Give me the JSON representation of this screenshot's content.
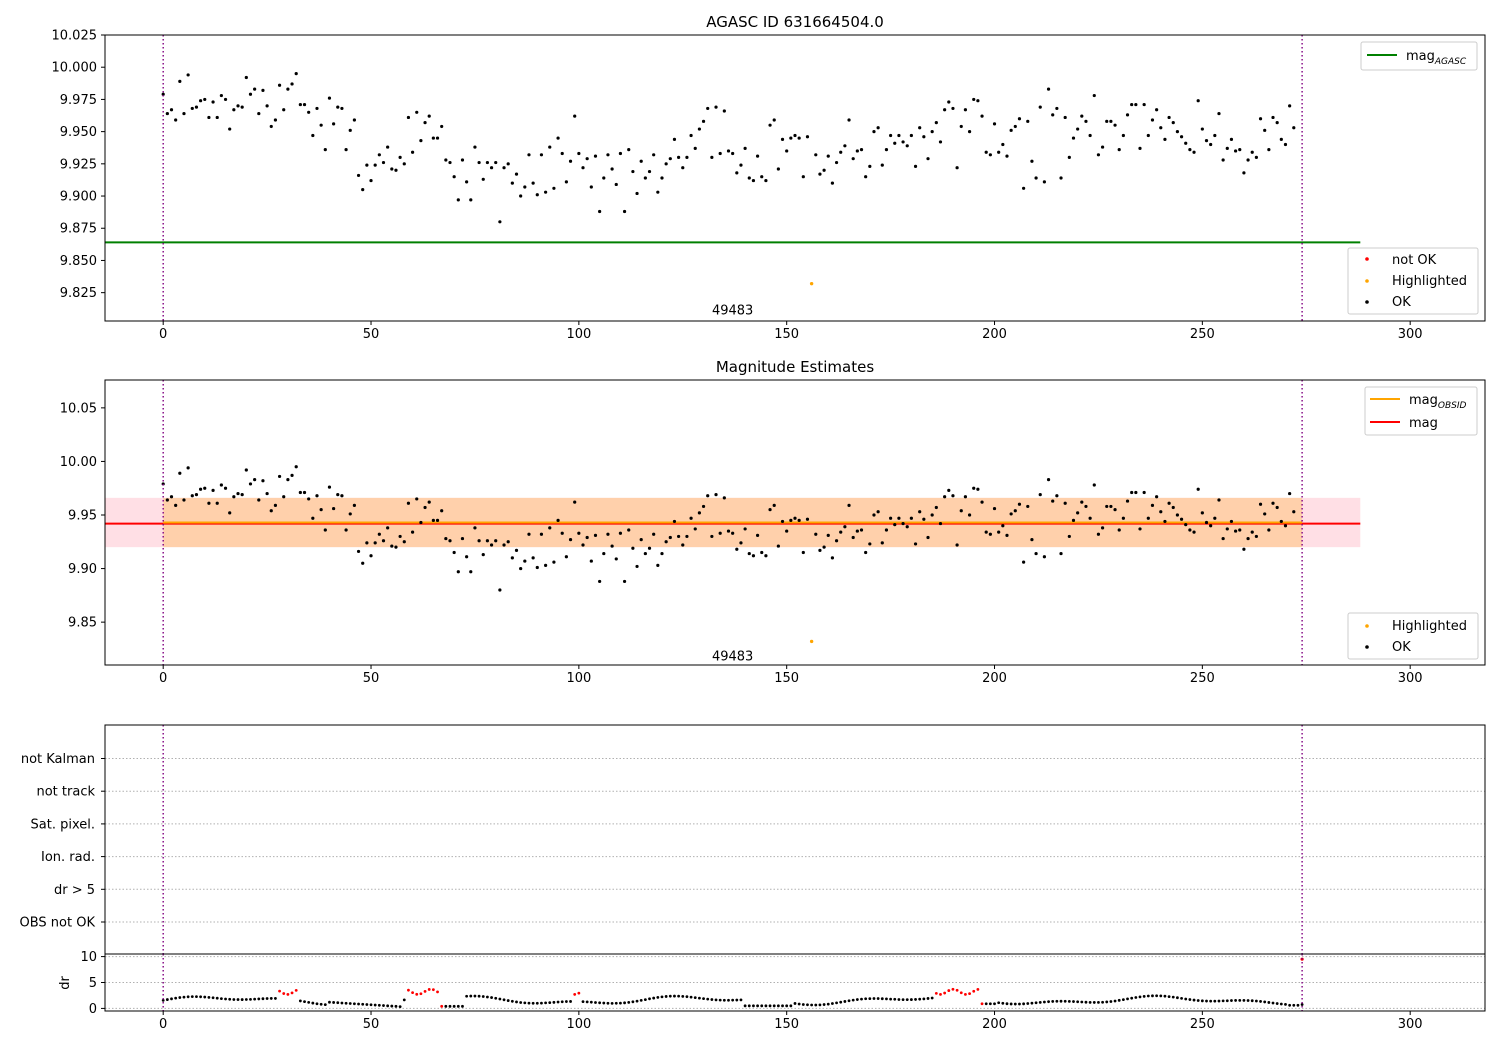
{
  "chart_data": [
    {
      "type": "scatter",
      "title": "AGASC ID 631664504.0",
      "xlabel": "",
      "ylabel": "",
      "xlim": [
        -14,
        318
      ],
      "ylim": [
        9.803,
        10.025
      ],
      "xticks": [
        0,
        50,
        100,
        150,
        200,
        250,
        300
      ],
      "yticks": [
        9.825,
        9.85,
        9.875,
        9.9,
        9.925,
        9.95,
        9.975,
        10.0,
        10.025
      ],
      "ytick_labels": [
        "9.825",
        "9.850",
        "9.875",
        "9.900",
        "9.925",
        "9.950",
        "9.975",
        "10.000",
        "10.025"
      ],
      "grid": false,
      "legends": [
        {
          "placement": "top-right",
          "entries": [
            {
              "label": "mag",
              "sub": "AGASC",
              "color": "#008000",
              "marker": "line"
            }
          ]
        },
        {
          "placement": "bottom-right",
          "entries": [
            {
              "label": "not OK",
              "color": "#ff0000",
              "marker": "dot"
            },
            {
              "label": "Highlighted",
              "color": "#ffa500",
              "marker": "dot"
            },
            {
              "label": "OK",
              "color": "#000000",
              "marker": "dot"
            }
          ]
        }
      ],
      "lines": [
        {
          "name": "mag AGASC",
          "y": 9.864,
          "x_range": [
            -14,
            288
          ],
          "color": "#008000"
        }
      ],
      "highlighted_points": [
        {
          "x": 156,
          "y": 9.832
        }
      ],
      "annotations": [
        {
          "text": "49483",
          "x": 137,
          "y": 9.811
        }
      ],
      "vlines": [
        {
          "x": 0,
          "color": "#800080",
          "style": "dotted"
        },
        {
          "x": 274,
          "color": "#800080",
          "style": "dotted"
        }
      ]
    },
    {
      "type": "scatter",
      "title": "Magnitude Estimates",
      "xlabel": "",
      "ylabel": "",
      "xlim": [
        -14,
        318
      ],
      "ylim": [
        9.81,
        10.076
      ],
      "xticks": [
        0,
        50,
        100,
        150,
        200,
        250,
        300
      ],
      "yticks": [
        9.85,
        9.9,
        9.95,
        10.0,
        10.05
      ],
      "ytick_labels": [
        "9.85",
        "9.90",
        "9.95",
        "10.00",
        "10.05"
      ],
      "grid": false,
      "legends": [
        {
          "placement": "top-right",
          "entries": [
            {
              "label": "mag",
              "sub": "OBSID",
              "color": "#ffa500",
              "marker": "line"
            },
            {
              "label": "mag",
              "sub": "",
              "color": "#ff0000",
              "marker": "line"
            }
          ]
        },
        {
          "placement": "bottom-right",
          "entries": [
            {
              "label": "Highlighted",
              "color": "#ffa500",
              "marker": "dot"
            },
            {
              "label": "OK",
              "color": "#000000",
              "marker": "dot"
            }
          ]
        }
      ],
      "lines": [
        {
          "name": "mag OBSID",
          "y": 9.943,
          "x_range": [
            0,
            274
          ],
          "color": "#ffa500"
        },
        {
          "name": "mag",
          "y": 9.942,
          "x_range": [
            -14,
            288
          ],
          "color": "#ff0000"
        }
      ],
      "bands": [
        {
          "y_range": [
            9.92,
            9.966
          ],
          "x_range": [
            -14,
            288
          ],
          "color": "#ffc0cb"
        },
        {
          "y_range": [
            9.92,
            9.966
          ],
          "x_range": [
            0,
            274
          ],
          "color": "#ffa500"
        }
      ],
      "highlighted_points": [
        {
          "x": 156,
          "y": 9.832
        }
      ],
      "annotations": [
        {
          "text": "49483",
          "x": 137,
          "y": 9.818
        }
      ],
      "vlines": [
        {
          "x": 0,
          "color": "#800080",
          "style": "dotted"
        },
        {
          "x": 274,
          "color": "#800080",
          "style": "dotted"
        }
      ]
    },
    {
      "type": "scatter",
      "title": "",
      "xlabel": "",
      "ylabel": "",
      "xlim": [
        -14,
        318
      ],
      "category_ticks": [
        "not Kalman",
        "not track",
        "Sat. pixel.",
        "Ion. rad.",
        "dr > 5",
        "OBS not OK"
      ],
      "grid": true,
      "flags": "no flagged points visible",
      "vlines": [
        {
          "x": 0,
          "color": "#800080",
          "style": "dotted"
        },
        {
          "x": 274,
          "color": "#800080",
          "style": "dotted"
        }
      ]
    },
    {
      "type": "scatter",
      "title": "",
      "xlabel": "",
      "ylabel": "dr",
      "xlim": [
        -14,
        318
      ],
      "ylim": [
        -0.5,
        10.5
      ],
      "xticks": [
        0,
        50,
        100,
        150,
        200,
        250,
        300
      ],
      "yticks": [
        0,
        5,
        10
      ],
      "ytick_labels": [
        "0",
        "5",
        "10"
      ],
      "grid": true,
      "red_ranges": [
        [
          28,
          32
        ],
        [
          59,
          67
        ],
        [
          99,
          100
        ],
        [
          186,
          197
        ]
      ],
      "extra_points": [
        {
          "x": 274,
          "y": 9.5,
          "color": "#ff0000"
        }
      ],
      "vlines": [
        {
          "x": 0,
          "color": "#800080",
          "style": "dotted"
        },
        {
          "x": 274,
          "color": "#800080",
          "style": "dotted"
        }
      ]
    }
  ],
  "series": {
    "x_start": 0,
    "highlighted_x": 156,
    "mag_ok": [
      9.979,
      9.964,
      9.967,
      9.959,
      9.989,
      9.964,
      9.994,
      9.968,
      9.969,
      9.974,
      9.975,
      9.961,
      9.973,
      9.961,
      9.978,
      9.975,
      9.952,
      9.967,
      9.97,
      9.969,
      9.992,
      9.979,
      9.983,
      9.964,
      9.982,
      9.97,
      9.954,
      9.959,
      9.986,
      9.967,
      9.983,
      9.987,
      9.995,
      9.971,
      9.971,
      9.965,
      9.947,
      9.968,
      9.955,
      9.936,
      9.976,
      9.956,
      9.969,
      9.968,
      9.936,
      9.951,
      9.959,
      9.916,
      9.905,
      9.924,
      9.912,
      9.924,
      9.932,
      9.926,
      9.938,
      9.921,
      9.92,
      9.93,
      9.925,
      9.961,
      9.934,
      9.965,
      9.943,
      9.957,
      9.962,
      9.945,
      9.945,
      9.954,
      9.928,
      9.926,
      9.915,
      9.897,
      9.928,
      9.911,
      9.897,
      9.938,
      9.926,
      9.913,
      9.926,
      9.922,
      9.926,
      9.88,
      9.922,
      9.925,
      9.91,
      9.917,
      9.9,
      9.907,
      9.932,
      9.91,
      9.901,
      9.932,
      9.903,
      9.938,
      9.906,
      9.945,
      9.933,
      9.911,
      9.927,
      9.962,
      9.933,
      9.922,
      9.929,
      9.907,
      9.931,
      9.888,
      9.914,
      9.932,
      9.921,
      9.909,
      9.933,
      9.888,
      9.936,
      9.919,
      9.902,
      9.927,
      9.914,
      9.919,
      9.932,
      9.903,
      9.914,
      9.925,
      9.929,
      9.944,
      9.93,
      9.922,
      9.93,
      9.947,
      9.937,
      9.952,
      9.958,
      9.968,
      9.93,
      9.969,
      9.933,
      9.966,
      9.935,
      9.933,
      9.918,
      9.924,
      9.937,
      9.914,
      9.912,
      9.931,
      9.915,
      9.912,
      9.955,
      9.959,
      9.921,
      9.944,
      9.935,
      9.945,
      9.947,
      9.945,
      9.915,
      9.946,
      9.914,
      9.932,
      9.917,
      9.92,
      9.931,
      9.91,
      9.926,
      9.934,
      9.939,
      9.959,
      9.929,
      9.935,
      9.936,
      9.915,
      9.923,
      9.95,
      9.953,
      9.924,
      9.936,
      9.947,
      9.941,
      9.947,
      9.942,
      9.939,
      9.947,
      9.923,
      9.953,
      9.946,
      9.929,
      9.95,
      9.957,
      9.942,
      9.967,
      9.973,
      9.968,
      9.922,
      9.954,
      9.967,
      9.95,
      9.975,
      9.974,
      9.962,
      9.934,
      9.932,
      9.956,
      9.934,
      9.94,
      9.931,
      9.951,
      9.954,
      9.96,
      9.906,
      9.958,
      9.927,
      9.914,
      9.969,
      9.911,
      9.983,
      9.963,
      9.968,
      9.914,
      9.961,
      9.93,
      9.945,
      9.952,
      9.962,
      9.958,
      9.947,
      9.978,
      9.932,
      9.938,
      9.958,
      9.958,
      9.955,
      9.936,
      9.947,
      9.963,
      9.971,
      9.971,
      9.937,
      9.971,
      9.947,
      9.959,
      9.967,
      9.953,
      9.944,
      9.961,
      9.957,
      9.95,
      9.946,
      9.941,
      9.936,
      9.934,
      9.974,
      9.952,
      9.943,
      9.94,
      9.947,
      9.964,
      9.928,
      9.937,
      9.944,
      9.935,
      9.936,
      9.918,
      9.928,
      9.934,
      9.93,
      9.96,
      9.951,
      9.936,
      9.961,
      9.957,
      9.944,
      9.94,
      9.97,
      9.953
    ]
  }
}
